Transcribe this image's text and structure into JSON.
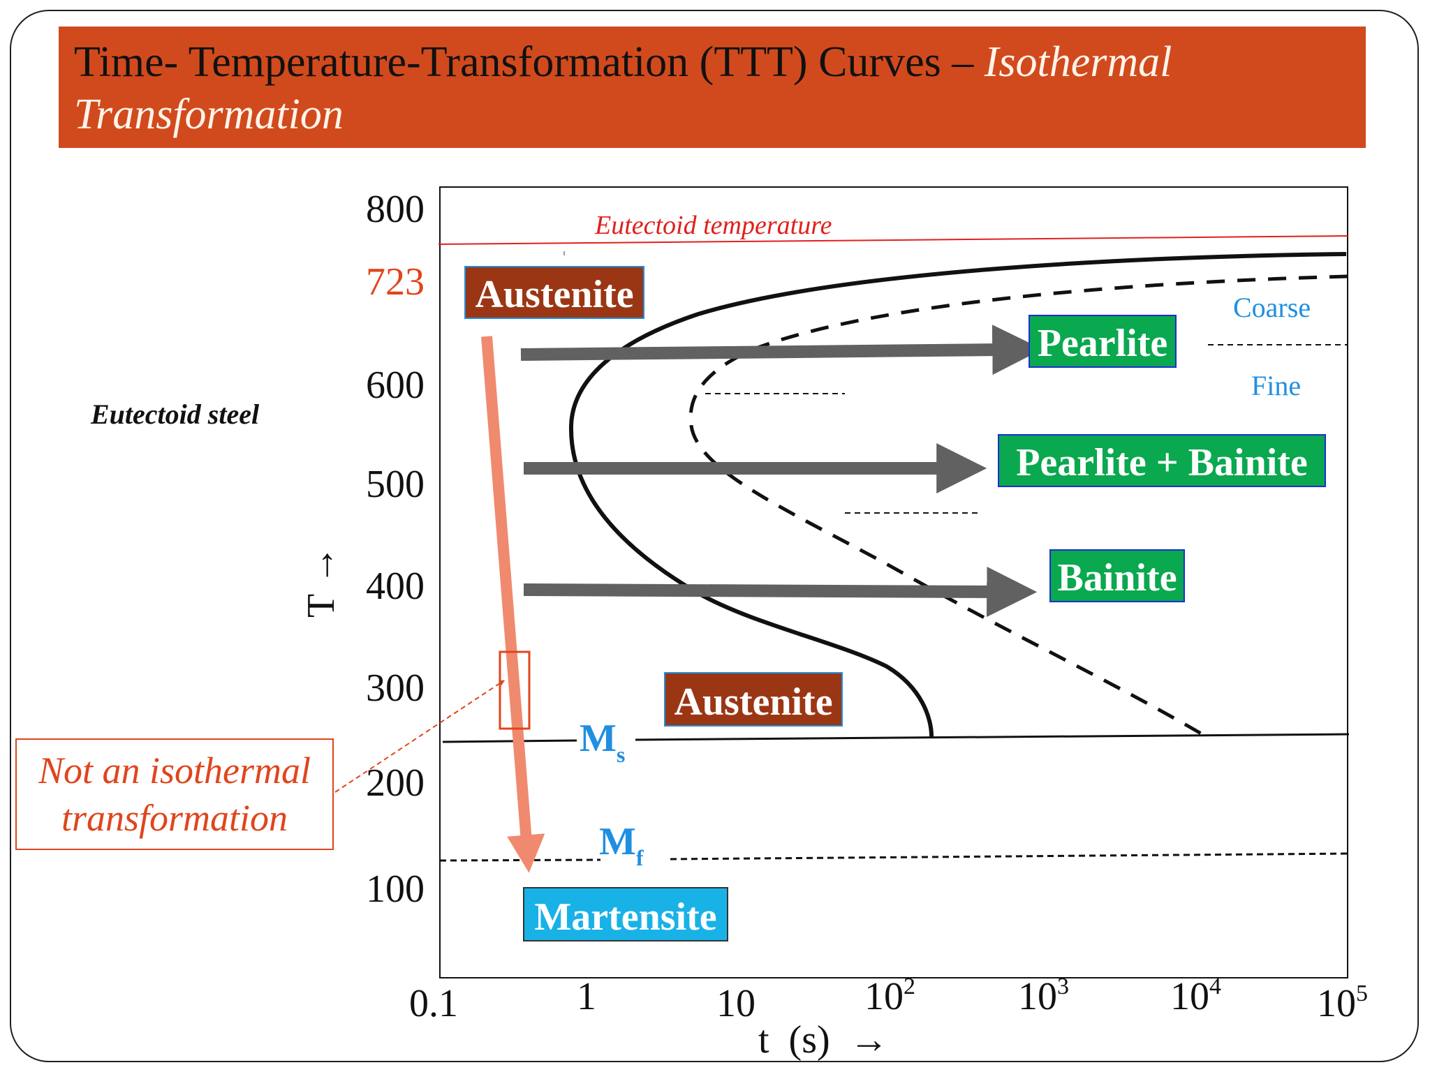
{
  "title": {
    "part1": "Time- Temperature-Transformation (TTT) Curves – ",
    "part2_italic": "Isothermal",
    "line2_italic": "Transformation"
  },
  "side_label": "Eutectoid steel",
  "note": {
    "line1": "Not an isothermal",
    "line2": "transformation"
  },
  "axes": {
    "y_ticks": [
      "800",
      "723",
      "600",
      "500",
      "400",
      "300",
      "200",
      "100"
    ],
    "y_label": "T →",
    "x_ticks": [
      "0.1",
      "1",
      "10",
      "10",
      "10",
      "10",
      "10"
    ],
    "x_exponents": [
      "",
      "",
      "",
      "2",
      "3",
      "4",
      "5"
    ],
    "x_label": "t  (s)  →"
  },
  "labels": {
    "eutectoid_temperature": "Eutectoid temperature",
    "coarse": "Coarse",
    "fine": "Fine",
    "ms_main": "M",
    "ms_sub": "s",
    "mf_main": "M",
    "mf_sub": "f"
  },
  "phase_boxes": {
    "austenite_top": "Austenite",
    "pearlite": "Pearlite",
    "pearlite_bainite": "Pearlite + Bainite",
    "bainite": "Bainite",
    "austenite_bottom": "Austenite",
    "martensite": "Martensite"
  },
  "colors": {
    "title_bar": "#d14a1d",
    "austenite_box": "#9b3614",
    "product_box": "#0aa84f",
    "martensite_box": "#19b2e6",
    "eutectoid_line": "#e0201c",
    "highlight_red": "#e0451c",
    "cooling_arrow": "#f08a6e",
    "iso_arrow": "#616161",
    "label_blue": "#1f8fe0"
  }
}
